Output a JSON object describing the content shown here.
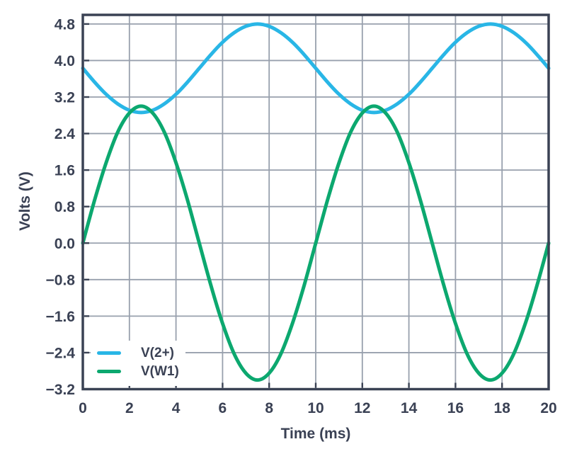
{
  "chart_data": {
    "type": "line",
    "title": "",
    "xlabel": "Time (ms)",
    "ylabel": "Volts (V)",
    "xlim": [
      0,
      20
    ],
    "ylim": [
      -3.2,
      5.0
    ],
    "grid": true,
    "legend_position": "bottom-left",
    "background": "#ffffff",
    "grid_color": "#98a0ad",
    "border_color": "#3a4254",
    "text_color": "#3a4154",
    "x_ticks": [
      {
        "v": 0,
        "label": "0"
      },
      {
        "v": 2,
        "label": "2"
      },
      {
        "v": 4,
        "label": "4"
      },
      {
        "v": 6,
        "label": "6"
      },
      {
        "v": 8,
        "label": "8"
      },
      {
        "v": 10,
        "label": "10"
      },
      {
        "v": 12,
        "label": "12"
      },
      {
        "v": 14,
        "label": "14"
      },
      {
        "v": 16,
        "label": "16"
      },
      {
        "v": 18,
        "label": "18"
      },
      {
        "v": 20,
        "label": "20"
      }
    ],
    "y_ticks": [
      {
        "v": 4.8,
        "label": "4.8"
      },
      {
        "v": 4.0,
        "label": "4.0"
      },
      {
        "v": 3.2,
        "label": "3.2"
      },
      {
        "v": 2.4,
        "label": "2.4"
      },
      {
        "v": 1.6,
        "label": "1.6"
      },
      {
        "v": 0.8,
        "label": "0.8"
      },
      {
        "v": 0.0,
        "label": "0.0"
      },
      {
        "v": -0.8,
        "label": "−0.8"
      },
      {
        "v": -1.6,
        "label": "−1.6"
      },
      {
        "v": -2.4,
        "label": "−2.4"
      },
      {
        "v": -3.2,
        "label": "−3.2"
      }
    ],
    "x": [
      0,
      0.5,
      1,
      1.5,
      2,
      2.5,
      3,
      3.5,
      4,
      4.5,
      5,
      5.5,
      6,
      6.5,
      7,
      7.5,
      8,
      8.5,
      9,
      9.5,
      10,
      10.5,
      11,
      11.5,
      12,
      12.5,
      13,
      13.5,
      14,
      14.5,
      15,
      15.5,
      16,
      16.5,
      17,
      17.5,
      18,
      18.5,
      19,
      19.5,
      20
    ],
    "series": [
      {
        "name": "V(2+)",
        "color": "#29b6e6",
        "values": [
          3.83,
          3.53,
          3.26,
          3.05,
          2.91,
          2.86,
          2.91,
          3.05,
          3.26,
          3.53,
          3.83,
          4.13,
          4.4,
          4.61,
          4.75,
          4.8,
          4.75,
          4.61,
          4.4,
          4.13,
          3.83,
          3.53,
          3.26,
          3.05,
          2.91,
          2.86,
          2.91,
          3.05,
          3.26,
          3.53,
          3.83,
          4.13,
          4.4,
          4.61,
          4.75,
          4.8,
          4.75,
          4.61,
          4.4,
          4.13,
          3.83
        ]
      },
      {
        "name": "V(W1)",
        "color": "#0ca86f",
        "values": [
          0.0,
          0.93,
          1.76,
          2.43,
          2.85,
          3.0,
          2.85,
          2.43,
          1.76,
          0.93,
          0.0,
          -0.93,
          -1.76,
          -2.43,
          -2.85,
          -3.0,
          -2.85,
          -2.43,
          -1.76,
          -0.93,
          0.0,
          0.93,
          1.76,
          2.43,
          2.85,
          3.0,
          2.85,
          2.43,
          1.76,
          0.93,
          0.0,
          -0.93,
          -1.76,
          -2.43,
          -2.85,
          -3.0,
          -2.85,
          -2.43,
          -1.76,
          -0.93,
          0.0
        ]
      }
    ]
  }
}
